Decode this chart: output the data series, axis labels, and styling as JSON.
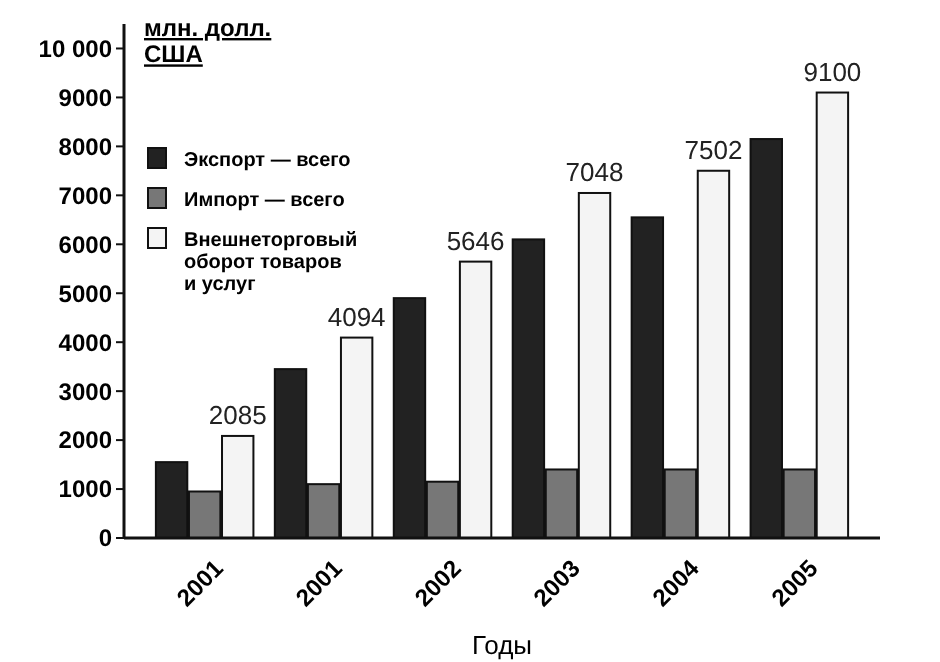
{
  "chart_data": {
    "type": "bar",
    "ylabel": "млн. долл. США",
    "xlabel": "Годы",
    "categories": [
      "2001",
      "2001",
      "2002",
      "2003",
      "2004",
      "2005"
    ],
    "series": [
      {
        "name": "Экспорт — всего",
        "color": "#222222",
        "values": [
          1550,
          3450,
          4900,
          6100,
          6550,
          8150
        ]
      },
      {
        "name": "Импорт — всего",
        "color": "#777777",
        "values": [
          950,
          1100,
          1150,
          1400,
          1400,
          1400
        ]
      },
      {
        "name": "Внешнеторговый оборот товаров и услуг",
        "color": "#f4f4f4",
        "values": [
          2085,
          4094,
          5646,
          7048,
          7502,
          9100
        ],
        "value_labels": [
          "2085",
          "4094",
          "5646",
          "7048",
          "7502",
          "9100"
        ]
      }
    ],
    "ylim": [
      0,
      10500
    ],
    "yticks": [
      0,
      1000,
      2000,
      3000,
      4000,
      5000,
      6000,
      7000,
      8000,
      9000,
      {
        "value": 10000,
        "label": "10 000"
      }
    ],
    "grid": false,
    "legend": "top left"
  }
}
